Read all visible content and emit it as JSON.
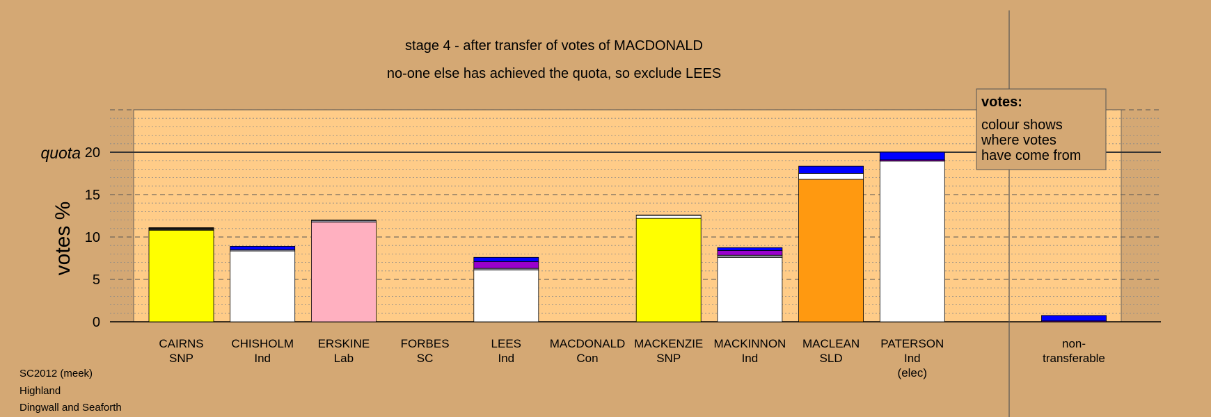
{
  "chart_data": {
    "type": "bar",
    "title": "stage 4 - after transfer of votes of MACDONALD",
    "subtitle": "no-one else has achieved the quota, so exclude LEES",
    "ylabel": "votes %",
    "quota_label": "quota",
    "quota_value": 20,
    "ylim": [
      0,
      25
    ],
    "yticks": [
      0,
      5,
      10,
      15,
      20
    ],
    "grid": true,
    "legend": {
      "position": "top-right",
      "heading": "votes:",
      "lines": [
        "colour shows",
        "where votes",
        "have come from"
      ]
    },
    "colors": {
      "background": "#d4a874",
      "plot": "#ffcc88",
      "SNP": "#ffff00",
      "Ind": "#ffffff",
      "Lab": "#ffb0c0",
      "SLD": "#ff9910",
      "Con": "#0000ff",
      "from_LEES": "#9900cc",
      "from_MACDONALD": "#0000ff",
      "from_CHISHOLM": "#ffffff",
      "from_FORBES": "#222222",
      "from_ERSKINE": "#ffb0c0",
      "from_other": "#9999aa"
    },
    "candidates": [
      {
        "name": "CAIRNS",
        "party": "SNP",
        "note": "",
        "segments": [
          {
            "from": "CAIRNS",
            "color": "#ffff00",
            "value": 10.8
          },
          {
            "from": "FORBES",
            "color": "#222222",
            "value": 0.25
          },
          {
            "from": "MACDONALD",
            "color": "#0000ff",
            "value": 0.05
          }
        ]
      },
      {
        "name": "CHISHOLM",
        "party": "Ind",
        "note": "",
        "segments": [
          {
            "from": "CHISHOLM",
            "color": "#ffffff",
            "value": 8.35
          },
          {
            "from": "other",
            "color": "#9999aa",
            "value": 0.15
          },
          {
            "from": "MACDONALD",
            "color": "#0000ff",
            "value": 0.4
          }
        ]
      },
      {
        "name": "ERSKINE",
        "party": "Lab",
        "note": "",
        "segments": [
          {
            "from": "ERSKINE",
            "color": "#ffb0c0",
            "value": 11.75
          },
          {
            "from": "other",
            "color": "#9999aa",
            "value": 0.2
          },
          {
            "from": "MACDONALD",
            "color": "#0000ff",
            "value": 0.05
          }
        ]
      },
      {
        "name": "FORBES",
        "party": "SC",
        "note": "",
        "segments": []
      },
      {
        "name": "LEES",
        "party": "Ind",
        "note": "",
        "segments": [
          {
            "from": "LEES",
            "color": "#ffffff",
            "value": 6.1
          },
          {
            "from": "other",
            "color": "#9999aa",
            "value": 0.2
          },
          {
            "from": "LEES-transfer",
            "color": "#9900cc",
            "value": 0.8
          },
          {
            "from": "MACDONALD",
            "color": "#0000ff",
            "value": 0.5
          }
        ]
      },
      {
        "name": "MACDONALD",
        "party": "Con",
        "note": "",
        "segments": []
      },
      {
        "name": "MACKENZIE",
        "party": "SNP",
        "note": "",
        "segments": [
          {
            "from": "MACKENZIE",
            "color": "#ffff00",
            "value": 12.2
          },
          {
            "from": "CHISHOLM",
            "color": "#ffffff",
            "value": 0.35
          },
          {
            "from": "MACDONALD",
            "color": "#0000ff",
            "value": 0.05
          }
        ]
      },
      {
        "name": "MACKINNON",
        "party": "Ind",
        "note": "",
        "segments": [
          {
            "from": "MACKINNON",
            "color": "#ffffff",
            "value": 7.6
          },
          {
            "from": "other",
            "color": "#9999aa",
            "value": 0.25
          },
          {
            "from": "LEES-transfer",
            "color": "#9900cc",
            "value": 0.55
          },
          {
            "from": "MACDONALD",
            "color": "#0000ff",
            "value": 0.35
          }
        ]
      },
      {
        "name": "MACLEAN",
        "party": "SLD",
        "note": "",
        "segments": [
          {
            "from": "MACLEAN",
            "color": "#ff9910",
            "value": 16.8
          },
          {
            "from": "CHISHOLM",
            "color": "#ffffff",
            "value": 0.7
          },
          {
            "from": "MACDONALD",
            "color": "#0000ff",
            "value": 0.85
          }
        ]
      },
      {
        "name": "PATERSON",
        "party": "Ind",
        "note": "(elec)",
        "segments": [
          {
            "from": "PATERSON",
            "color": "#ffffff",
            "value": 18.95
          },
          {
            "from": "LEES-transfer",
            "color": "#9900cc",
            "value": 0.15
          },
          {
            "from": "MACDONALD",
            "color": "#0000ff",
            "value": 0.9
          }
        ]
      }
    ],
    "nontransferable": {
      "label_line1": "non-",
      "label_line2": "transferable",
      "segments": [
        {
          "from": "LEES-transfer",
          "color": "#9900cc",
          "value": 0.1
        },
        {
          "from": "MACDONALD",
          "color": "#0000ff",
          "value": 0.65
        }
      ]
    }
  },
  "footer": {
    "line1": "SC2012 (meek)",
    "line2": "Highland",
    "line3": "Dingwall and Seaforth"
  }
}
